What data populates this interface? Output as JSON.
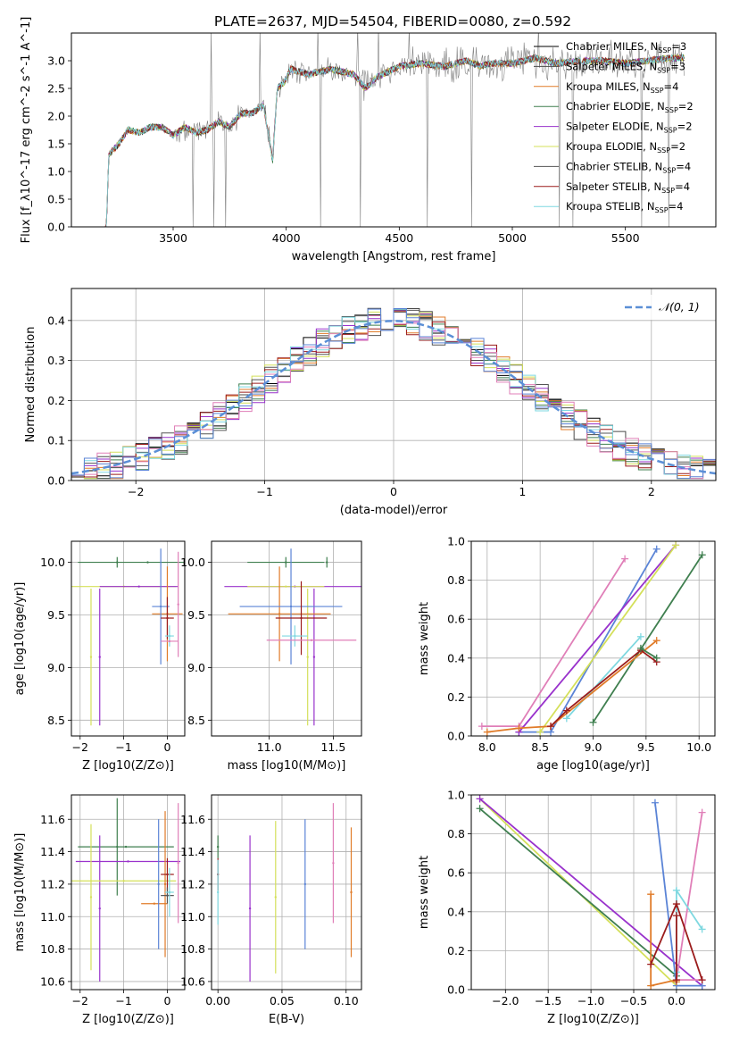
{
  "figure_title": "PLATE=2637, MJD=54504, FIBERID=0080, z=0.592",
  "colors": {
    "chabrier_miles": "#000000",
    "salpeter_miles": "#4a4a4a",
    "kroupa_miles": "#e07b28",
    "chabrier_elodie": "#3f7f4f",
    "salpeter_elodie": "#9932cc",
    "kroupa_elodie": "#d4e05a",
    "chabrier_stelib": "#555555",
    "salpeter_stelib": "#9b1c1c",
    "kroupa_stelib": "#7fd8e0",
    "pink": "#e07fb8",
    "blue": "#5b84d6",
    "observed": "#808080",
    "normal": "#5b8fd6"
  },
  "chart_data": [
    {
      "id": "spectrum",
      "type": "line",
      "title": "PLATE=2637, MJD=54504, FIBERID=0080, z=0.592",
      "xlabel": "wavelength [Angstrom, rest frame]",
      "ylabel": "Flux [f_λ10^-17 erg cm^-2 s^-1 A^-1]",
      "xlim": [
        3050,
        5900
      ],
      "ylim": [
        0,
        3.5
      ],
      "xticks": [
        3500,
        4000,
        4500,
        5000,
        5500
      ],
      "yticks": [
        0.0,
        0.5,
        1.0,
        1.5,
        2.0,
        2.5,
        3.0
      ],
      "grid": false,
      "legend_position": "top-right",
      "continuum_x": [
        3205,
        3215,
        3260,
        3300,
        3350,
        3400,
        3450,
        3500,
        3550,
        3600,
        3650,
        3700,
        3750,
        3800,
        3850,
        3900,
        3940,
        3960,
        3990,
        4020,
        4100,
        4200,
        4300,
        4350,
        4400,
        4500,
        4600,
        4700,
        4800,
        4860,
        4900,
        5000,
        5100,
        5200,
        5300,
        5400,
        5500,
        5600,
        5700,
        5760
      ],
      "continuum_y": [
        0.0,
        1.3,
        1.5,
        1.75,
        1.7,
        1.8,
        1.8,
        1.65,
        1.8,
        1.7,
        1.75,
        1.9,
        1.8,
        2.05,
        2.05,
        2.2,
        1.2,
        2.5,
        2.6,
        2.85,
        2.75,
        2.85,
        2.75,
        2.5,
        2.7,
        2.9,
        2.95,
        2.9,
        3.0,
        2.9,
        2.95,
        2.95,
        3.05,
        2.95,
        3.0,
        3.0,
        2.95,
        3.0,
        3.05,
        3.05
      ],
      "series": [
        {
          "label": "Chabrier MILES",
          "nssp": "3",
          "color_key": "chabrier_miles"
        },
        {
          "label": "Salpeter MILES",
          "nssp": "3",
          "color_key": "salpeter_miles"
        },
        {
          "label": "Kroupa MILES",
          "nssp": "4",
          "color_key": "kroupa_miles"
        },
        {
          "label": "Chabrier ELODIE",
          "nssp": "2",
          "color_key": "chabrier_elodie"
        },
        {
          "label": "Salpeter ELODIE",
          "nssp": "2",
          "color_key": "salpeter_elodie"
        },
        {
          "label": "Kroupa ELODIE",
          "nssp": "2",
          "color_key": "kroupa_elodie"
        },
        {
          "label": "Chabrier STELIB",
          "nssp": "4",
          "color_key": "chabrier_stelib"
        },
        {
          "label": "Salpeter STELIB",
          "nssp": "4",
          "color_key": "salpeter_stelib"
        },
        {
          "label": "Kroupa STELIB",
          "nssp": "4",
          "color_key": "kroupa_stelib"
        }
      ]
    },
    {
      "id": "residuals",
      "type": "line",
      "xlabel": "(data-model)/error",
      "ylabel": "Normed distribution",
      "xlim": [
        -2.5,
        2.5
      ],
      "ylim": [
        0,
        0.48
      ],
      "xticks": [
        -2,
        -1,
        0,
        1,
        2
      ],
      "yticks": [
        0.0,
        0.1,
        0.2,
        0.3,
        0.4
      ],
      "grid": true,
      "legend_position": "top-right",
      "legend_label": "𝒩(0, 1)",
      "bin_width": 0.1
    },
    {
      "id": "age_vs_Z",
      "type": "scatter",
      "xlabel": "Z [log10(Z/Z⊙)]",
      "ylabel": "age  [log10(age/yr)]",
      "xlim": [
        -2.2,
        0.4
      ],
      "ylim": [
        8.35,
        10.2
      ],
      "xticks": [
        -2,
        -1,
        0
      ],
      "yticks": [
        8.5,
        9.0,
        9.5,
        10.0
      ],
      "grid": true,
      "points": [
        {
          "x": -0.45,
          "y": 10.0,
          "xerr": 1.6,
          "yerr": 0.0,
          "color_key": "chabrier_elodie"
        },
        {
          "x": -1.15,
          "y": 10.0,
          "xerr": 0.0,
          "yerr": 0.05,
          "color_key": "chabrier_elodie"
        },
        {
          "x": -1.0,
          "y": 9.77,
          "xerr": 1.2,
          "yerr": 0.0,
          "color_key": "kroupa_elodie"
        },
        {
          "x": -1.75,
          "y": 9.1,
          "xerr": 0.0,
          "yerr": 0.65,
          "color_key": "kroupa_elodie"
        },
        {
          "x": -1.55,
          "y": 9.1,
          "xerr": 0.0,
          "yerr": 0.65,
          "color_key": "salpeter_elodie"
        },
        {
          "x": -0.65,
          "y": 9.77,
          "xerr": 0.9,
          "yerr": 0.0,
          "color_key": "salpeter_elodie"
        },
        {
          "x": 0.0,
          "y": 9.51,
          "xerr": 0.35,
          "yerr": 0.45,
          "color_key": "kroupa_miles"
        },
        {
          "x": -0.15,
          "y": 9.58,
          "xerr": 0.2,
          "yerr": 0.55,
          "color_key": "blue"
        },
        {
          "x": 0.25,
          "y": 9.6,
          "xerr": 0.0,
          "yerr": 0.5,
          "color_key": "pink"
        },
        {
          "x": 0.0,
          "y": 9.47,
          "xerr": 0.15,
          "yerr": 0.2,
          "color_key": "salpeter_stelib"
        },
        {
          "x": 0.05,
          "y": 9.3,
          "xerr": 0.1,
          "yerr": 0.1,
          "color_key": "kroupa_stelib"
        },
        {
          "x": 0.05,
          "y": 9.25,
          "xerr": 0.2,
          "yerr": 0.0,
          "color_key": "pink"
        }
      ]
    },
    {
      "id": "age_vs_mass",
      "type": "scatter",
      "xlabel": "mass [log10(M/M⊙)]",
      "ylabel": "",
      "xlim": [
        10.55,
        11.72
      ],
      "ylim": [
        8.35,
        10.2
      ],
      "xticks": [
        11.0,
        11.5
      ],
      "yticks": [
        8.5,
        9.0,
        9.5,
        10.0
      ],
      "grid": true,
      "points": [
        {
          "x": 11.13,
          "y": 10.0,
          "xerr": 0.3,
          "yerr": 0.05,
          "color_key": "chabrier_elodie"
        },
        {
          "x": 11.45,
          "y": 10.0,
          "xerr": 0.0,
          "yerr": 0.05,
          "color_key": "chabrier_elodie"
        },
        {
          "x": 11.2,
          "y": 9.77,
          "xerr": 0.55,
          "yerr": 0.0,
          "color_key": "salpeter_elodie"
        },
        {
          "x": 11.13,
          "y": 9.77,
          "xerr": 0.3,
          "yerr": 0.0,
          "color_key": "kroupa_elodie"
        },
        {
          "x": 11.3,
          "y": 9.1,
          "xerr": 0.0,
          "yerr": 0.65,
          "color_key": "kroupa_elodie"
        },
        {
          "x": 11.35,
          "y": 9.1,
          "xerr": 0.0,
          "yerr": 0.65,
          "color_key": "salpeter_elodie"
        },
        {
          "x": 11.08,
          "y": 9.51,
          "xerr": 0.4,
          "yerr": 0.45,
          "color_key": "kroupa_miles"
        },
        {
          "x": 11.17,
          "y": 9.58,
          "xerr": 0.4,
          "yerr": 0.55,
          "color_key": "blue"
        },
        {
          "x": 11.25,
          "y": 9.47,
          "xerr": 0.2,
          "yerr": 0.35,
          "color_key": "salpeter_stelib"
        },
        {
          "x": 11.2,
          "y": 9.3,
          "xerr": 0.1,
          "yerr": 0.1,
          "color_key": "kroupa_stelib"
        },
        {
          "x": 11.33,
          "y": 9.26,
          "xerr": 0.35,
          "yerr": 0.0,
          "color_key": "pink"
        }
      ]
    },
    {
      "id": "mass_weight_vs_age",
      "type": "line",
      "xlabel": "age  [log10(age/yr)]",
      "ylabel": "mass weight",
      "xlim": [
        7.85,
        10.15
      ],
      "ylim": [
        0,
        1.0
      ],
      "xticks": [
        8.0,
        8.5,
        9.0,
        9.5,
        10.0
      ],
      "yticks": [
        0.0,
        0.2,
        0.4,
        0.6,
        0.8,
        1.0
      ],
      "grid": true,
      "series": [
        {
          "color_key": "pink",
          "x": [
            7.95,
            8.3,
            9.3
          ],
          "y": [
            0.05,
            0.05,
            0.91
          ]
        },
        {
          "color_key": "blue",
          "x": [
            8.3,
            8.6,
            9.6
          ],
          "y": [
            0.02,
            0.02,
            0.96
          ]
        },
        {
          "color_key": "salpeter_elodie",
          "x": [
            8.3,
            9.78
          ],
          "y": [
            0.02,
            0.98
          ]
        },
        {
          "color_key": "kroupa_elodie",
          "x": [
            8.5,
            9.78
          ],
          "y": [
            0.02,
            0.98
          ]
        },
        {
          "color_key": "chabrier_elodie",
          "x": [
            9.0,
            10.03
          ],
          "y": [
            0.07,
            0.93
          ]
        },
        {
          "color_key": "kroupa_stelib",
          "x": [
            8.75,
            9.45
          ],
          "y": [
            0.09,
            0.51
          ]
        },
        {
          "color_key": "kroupa_miles",
          "x": [
            8.0,
            8.3,
            8.6,
            9.6
          ],
          "y": [
            0.02,
            0.04,
            0.05,
            0.49
          ]
        },
        {
          "color_key": "salpeter_stelib",
          "x": [
            8.6,
            8.75,
            9.45,
            9.6
          ],
          "y": [
            0.05,
            0.13,
            0.44,
            0.38
          ]
        },
        {
          "color_key": "chabrier_elodie",
          "x": [
            9.45,
            9.6
          ],
          "y": [
            0.45,
            0.4
          ]
        }
      ]
    },
    {
      "id": "mass_vs_Z",
      "type": "scatter",
      "xlabel": "Z [log10(Z/Z⊙)]",
      "ylabel": "mass [log10(M/M⊙)]",
      "xlim": [
        -2.2,
        0.4
      ],
      "ylim": [
        10.55,
        11.75
      ],
      "xticks": [
        -2,
        -1,
        0
      ],
      "yticks": [
        10.6,
        10.8,
        11.0,
        11.2,
        11.4,
        11.6
      ],
      "grid": true,
      "points": [
        {
          "x": -0.95,
          "y": 11.43,
          "xerr": 1.1,
          "yerr": 0.0,
          "color_key": "chabrier_elodie"
        },
        {
          "x": -1.15,
          "y": 11.43,
          "xerr": 0.0,
          "yerr": 0.3,
          "color_key": "chabrier_elodie"
        },
        {
          "x": -0.9,
          "y": 11.34,
          "xerr": 1.2,
          "yerr": 0.0,
          "color_key": "salpeter_elodie"
        },
        {
          "x": -1.55,
          "y": 11.05,
          "xerr": 0.0,
          "yerr": 0.45,
          "color_key": "salpeter_elodie"
        },
        {
          "x": -1.0,
          "y": 11.22,
          "xerr": 1.2,
          "yerr": 0.0,
          "color_key": "kroupa_elodie"
        },
        {
          "x": -1.75,
          "y": 11.12,
          "xerr": 0.0,
          "yerr": 0.45,
          "color_key": "kroupa_elodie"
        },
        {
          "x": -0.3,
          "y": 11.08,
          "xerr": 0.3,
          "yerr": 0.0,
          "color_key": "kroupa_miles"
        },
        {
          "x": -0.05,
          "y": 11.2,
          "xerr": 0.0,
          "yerr": 0.45,
          "color_key": "kroupa_miles"
        },
        {
          "x": -0.2,
          "y": 11.2,
          "xerr": 0.0,
          "yerr": 0.4,
          "color_key": "blue"
        },
        {
          "x": 0.0,
          "y": 11.26,
          "xerr": 0.15,
          "yerr": 0.1,
          "color_key": "salpeter_stelib"
        },
        {
          "x": 0.0,
          "y": 11.13,
          "xerr": 0.15,
          "yerr": 0.05,
          "color_key": "chabrier_stelib"
        },
        {
          "x": 0.05,
          "y": 11.15,
          "xerr": 0.1,
          "yerr": 0.15,
          "color_key": "kroupa_stelib"
        },
        {
          "x": 0.25,
          "y": 11.33,
          "xerr": 0.0,
          "yerr": 0.37,
          "color_key": "pink"
        }
      ]
    },
    {
      "id": "mass_vs_ebv",
      "type": "scatter",
      "xlabel": "E(B-V)",
      "ylabel": "",
      "xlim": [
        -0.005,
        0.112
      ],
      "ylim": [
        10.55,
        11.75
      ],
      "xticks": [
        0.0,
        0.05,
        0.1
      ],
      "yticks": [
        10.6,
        10.8,
        11.0,
        11.2,
        11.4,
        11.6
      ],
      "grid": true,
      "points": [
        {
          "x": 0.0,
          "y": 11.43,
          "xerr": 0.0,
          "yerr": 0.07,
          "color_key": "chabrier_elodie"
        },
        {
          "x": 0.0,
          "y": 11.26,
          "xerr": 0.0,
          "yerr": 0.1,
          "color_key": "salpeter_stelib"
        },
        {
          "x": 0.0,
          "y": 11.15,
          "xerr": 0.0,
          "yerr": 0.2,
          "color_key": "kroupa_stelib"
        },
        {
          "x": 0.025,
          "y": 11.05,
          "xerr": 0.0,
          "yerr": 0.45,
          "color_key": "salpeter_elodie"
        },
        {
          "x": 0.045,
          "y": 11.12,
          "xerr": 0.0,
          "yerr": 0.47,
          "color_key": "kroupa_elodie"
        },
        {
          "x": 0.068,
          "y": 11.2,
          "xerr": 0.0,
          "yerr": 0.4,
          "color_key": "blue"
        },
        {
          "x": 0.09,
          "y": 11.33,
          "xerr": 0.0,
          "yerr": 0.37,
          "color_key": "pink"
        },
        {
          "x": 0.104,
          "y": 11.15,
          "xerr": 0.0,
          "yerr": 0.4,
          "color_key": "kroupa_miles"
        }
      ]
    },
    {
      "id": "mass_weight_vs_Z",
      "type": "line",
      "xlabel": "Z [log10(Z/Z⊙)]",
      "ylabel": "mass weight",
      "xlim": [
        -2.4,
        0.45
      ],
      "ylim": [
        0,
        1.0
      ],
      "xticks": [
        -2.0,
        -1.5,
        -1.0,
        -0.5,
        0.0
      ],
      "yticks": [
        0.0,
        0.2,
        0.4,
        0.6,
        0.8,
        1.0
      ],
      "grid": true,
      "series": [
        {
          "color_key": "kroupa_elodie",
          "x": [
            -2.3,
            0.0
          ],
          "y": [
            0.98,
            0.02
          ]
        },
        {
          "color_key": "salpeter_elodie",
          "x": [
            -2.3,
            0.3
          ],
          "y": [
            0.98,
            0.02
          ]
        },
        {
          "color_key": "chabrier_elodie",
          "x": [
            -2.3,
            0.0
          ],
          "y": [
            0.93,
            0.07
          ]
        },
        {
          "color_key": "blue",
          "x": [
            -0.25,
            0.0,
            0.3
          ],
          "y": [
            0.96,
            0.02,
            0.02
          ]
        },
        {
          "color_key": "pink",
          "x": [
            0.3,
            0.0,
            0.3
          ],
          "y": [
            0.91,
            0.05,
            0.05
          ]
        },
        {
          "color_key": "kroupa_stelib",
          "x": [
            0.0,
            0.0,
            0.3
          ],
          "y": [
            0.09,
            0.51,
            0.31
          ]
        },
        {
          "color_key": "kroupa_miles",
          "x": [
            -0.3,
            -0.3,
            0.0,
            0.0
          ],
          "y": [
            0.49,
            0.02,
            0.05,
            0.04
          ]
        },
        {
          "color_key": "salpeter_stelib",
          "x": [
            -0.3,
            0.0,
            0.3
          ],
          "y": [
            0.13,
            0.44,
            0.05
          ]
        },
        {
          "color_key": "salpeter_stelib",
          "x": [
            0.0,
            0.0
          ],
          "y": [
            0.38,
            0.05
          ]
        }
      ]
    }
  ]
}
